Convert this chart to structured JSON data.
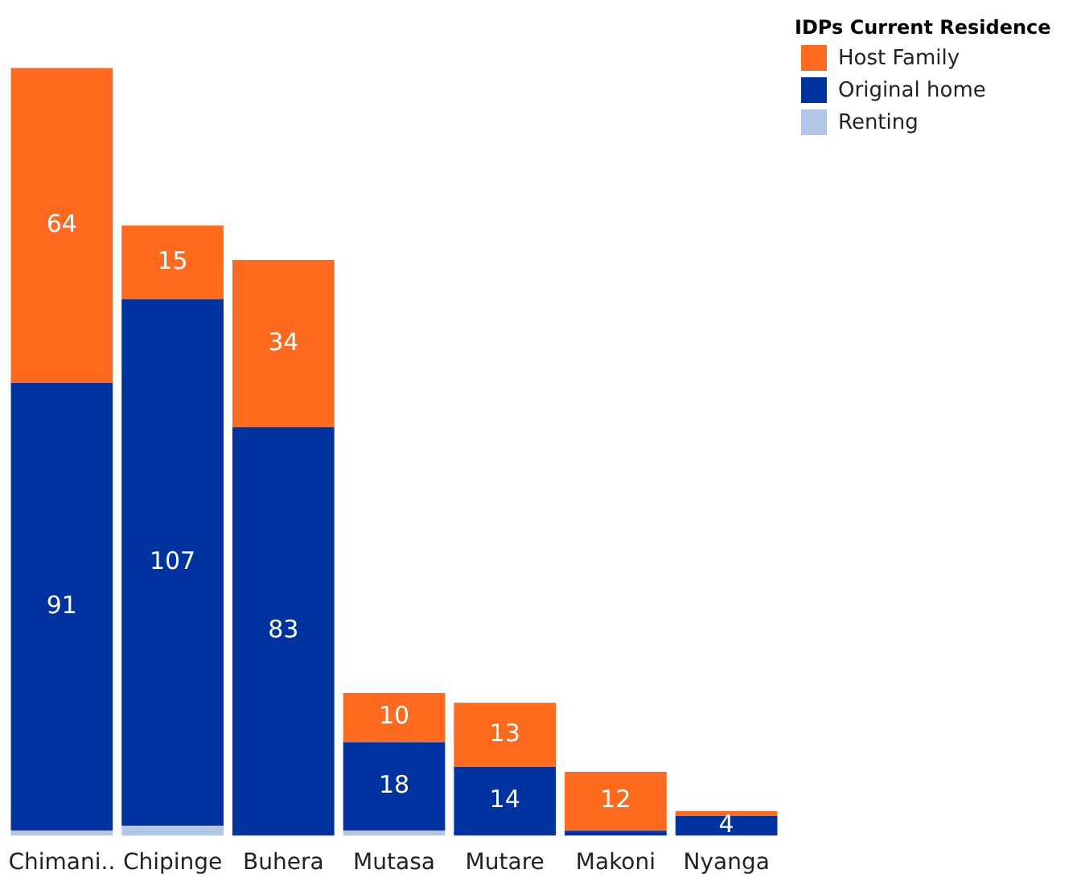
{
  "chart_data": {
    "type": "bar",
    "stacked": true,
    "legend": "top right",
    "legend_title": "IDPs Current Residence",
    "grid": false,
    "tick_labels": "x",
    "categories": [
      "Chimani..",
      "Chipinge",
      "Buhera",
      "Mutasa",
      "Mutare",
      "Makoni",
      "Nyanga"
    ],
    "series": [
      {
        "name": "Renting",
        "color": "#b4c6e7",
        "values": [
          1,
          2,
          0,
          1,
          0,
          0,
          0
        ],
        "value_labels": [
          null,
          null,
          null,
          null,
          null,
          null,
          null
        ]
      },
      {
        "name": "Original home",
        "color": "#0033a0",
        "values": [
          91,
          107,
          83,
          18,
          14,
          1,
          4
        ],
        "value_labels": [
          "91",
          "107",
          "83",
          "18",
          "14",
          null,
          "4"
        ]
      },
      {
        "name": "Host Family",
        "color": "#ff6a1f",
        "values": [
          64,
          15,
          34,
          10,
          13,
          12,
          1
        ],
        "value_labels": [
          "64",
          "15",
          "34",
          "10",
          "13",
          "12",
          null
        ]
      }
    ]
  }
}
